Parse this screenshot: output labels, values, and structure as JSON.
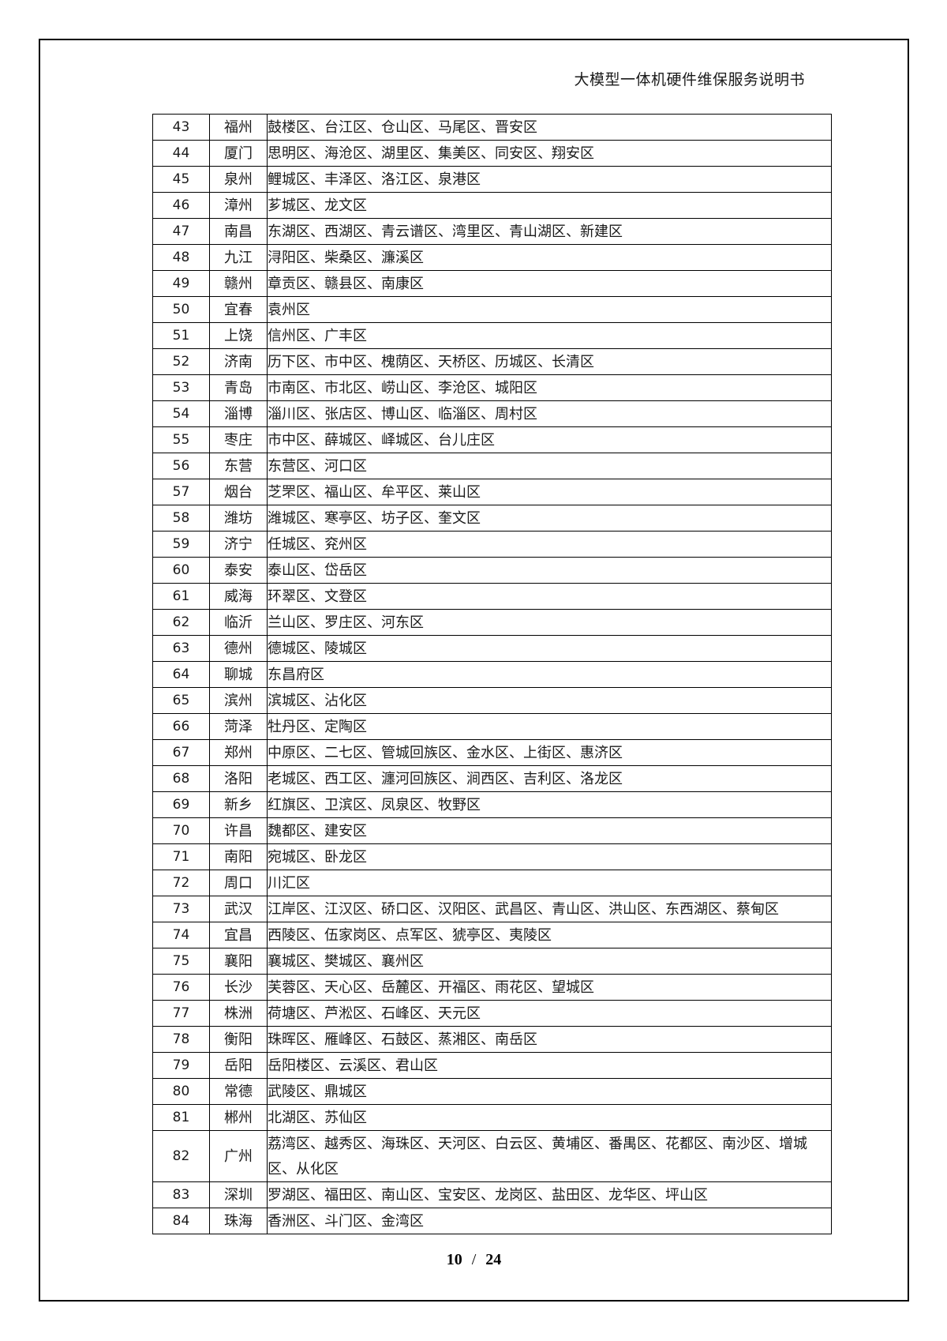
{
  "header": {
    "title": "大模型一体机硬件维保服务说明书"
  },
  "table": {
    "rows": [
      {
        "no": "43",
        "city": "福州",
        "districts": "鼓楼区、台江区、仓山区、马尾区、晋安区"
      },
      {
        "no": "44",
        "city": "厦门",
        "districts": "思明区、海沧区、湖里区、集美区、同安区、翔安区"
      },
      {
        "no": "45",
        "city": "泉州",
        "districts": "鲤城区、丰泽区、洛江区、泉港区"
      },
      {
        "no": "46",
        "city": "漳州",
        "districts": "芗城区、龙文区"
      },
      {
        "no": "47",
        "city": "南昌",
        "districts": "东湖区、西湖区、青云谱区、湾里区、青山湖区、新建区"
      },
      {
        "no": "48",
        "city": "九江",
        "districts": "浔阳区、柴桑区、濂溪区"
      },
      {
        "no": "49",
        "city": "赣州",
        "districts": "章贡区、赣县区、南康区"
      },
      {
        "no": "50",
        "city": "宜春",
        "districts": "袁州区"
      },
      {
        "no": "51",
        "city": "上饶",
        "districts": "信州区、广丰区"
      },
      {
        "no": "52",
        "city": "济南",
        "districts": "历下区、市中区、槐荫区、天桥区、历城区、长清区"
      },
      {
        "no": "53",
        "city": "青岛",
        "districts": "市南区、市北区、崂山区、李沧区、城阳区"
      },
      {
        "no": "54",
        "city": "淄博",
        "districts": "淄川区、张店区、博山区、临淄区、周村区"
      },
      {
        "no": "55",
        "city": "枣庄",
        "districts": "市中区、薛城区、峄城区、台儿庄区"
      },
      {
        "no": "56",
        "city": "东营",
        "districts": "东营区、河口区"
      },
      {
        "no": "57",
        "city": "烟台",
        "districts": "芝罘区、福山区、牟平区、莱山区"
      },
      {
        "no": "58",
        "city": "潍坊",
        "districts": "潍城区、寒亭区、坊子区、奎文区"
      },
      {
        "no": "59",
        "city": "济宁",
        "districts": "任城区、兖州区"
      },
      {
        "no": "60",
        "city": "泰安",
        "districts": "泰山区、岱岳区"
      },
      {
        "no": "61",
        "city": "威海",
        "districts": "环翠区、文登区"
      },
      {
        "no": "62",
        "city": "临沂",
        "districts": "兰山区、罗庄区、河东区"
      },
      {
        "no": "63",
        "city": "德州",
        "districts": "德城区、陵城区"
      },
      {
        "no": "64",
        "city": "聊城",
        "districts": "东昌府区"
      },
      {
        "no": "65",
        "city": "滨州",
        "districts": "滨城区、沾化区"
      },
      {
        "no": "66",
        "city": "菏泽",
        "districts": "牡丹区、定陶区"
      },
      {
        "no": "67",
        "city": "郑州",
        "districts": "中原区、二七区、管城回族区、金水区、上街区、惠济区"
      },
      {
        "no": "68",
        "city": "洛阳",
        "districts": "老城区、西工区、瀍河回族区、涧西区、吉利区、洛龙区"
      },
      {
        "no": "69",
        "city": "新乡",
        "districts": "红旗区、卫滨区、凤泉区、牧野区"
      },
      {
        "no": "70",
        "city": "许昌",
        "districts": "魏都区、建安区"
      },
      {
        "no": "71",
        "city": "南阳",
        "districts": "宛城区、卧龙区"
      },
      {
        "no": "72",
        "city": "周口",
        "districts": "川汇区"
      },
      {
        "no": "73",
        "city": "武汉",
        "districts": "江岸区、江汉区、硚口区、汉阳区、武昌区、青山区、洪山区、东西湖区、蔡甸区"
      },
      {
        "no": "74",
        "city": "宜昌",
        "districts": "西陵区、伍家岗区、点军区、猇亭区、夷陵区"
      },
      {
        "no": "75",
        "city": "襄阳",
        "districts": "襄城区、樊城区、襄州区"
      },
      {
        "no": "76",
        "city": "长沙",
        "districts": "芙蓉区、天心区、岳麓区、开福区、雨花区、望城区"
      },
      {
        "no": "77",
        "city": "株洲",
        "districts": "荷塘区、芦淞区、石峰区、天元区"
      },
      {
        "no": "78",
        "city": "衡阳",
        "districts": "珠晖区、雁峰区、石鼓区、蒸湘区、南岳区"
      },
      {
        "no": "79",
        "city": "岳阳",
        "districts": "岳阳楼区、云溪区、君山区"
      },
      {
        "no": "80",
        "city": "常德",
        "districts": "武陵区、鼎城区"
      },
      {
        "no": "81",
        "city": "郴州",
        "districts": "北湖区、苏仙区"
      },
      {
        "no": "82",
        "city": "广州",
        "districts": "荔湾区、越秀区、海珠区、天河区、白云区、黄埔区、番禺区、花都区、南沙区、增城区、从化区"
      },
      {
        "no": "83",
        "city": "深圳",
        "districts": "罗湖区、福田区、南山区、宝安区、龙岗区、盐田区、龙华区、坪山区"
      },
      {
        "no": "84",
        "city": "珠海",
        "districts": "香洲区、斗门区、金湾区"
      }
    ]
  },
  "footer": {
    "page_current": "10",
    "separator": "/",
    "page_total": "24"
  }
}
